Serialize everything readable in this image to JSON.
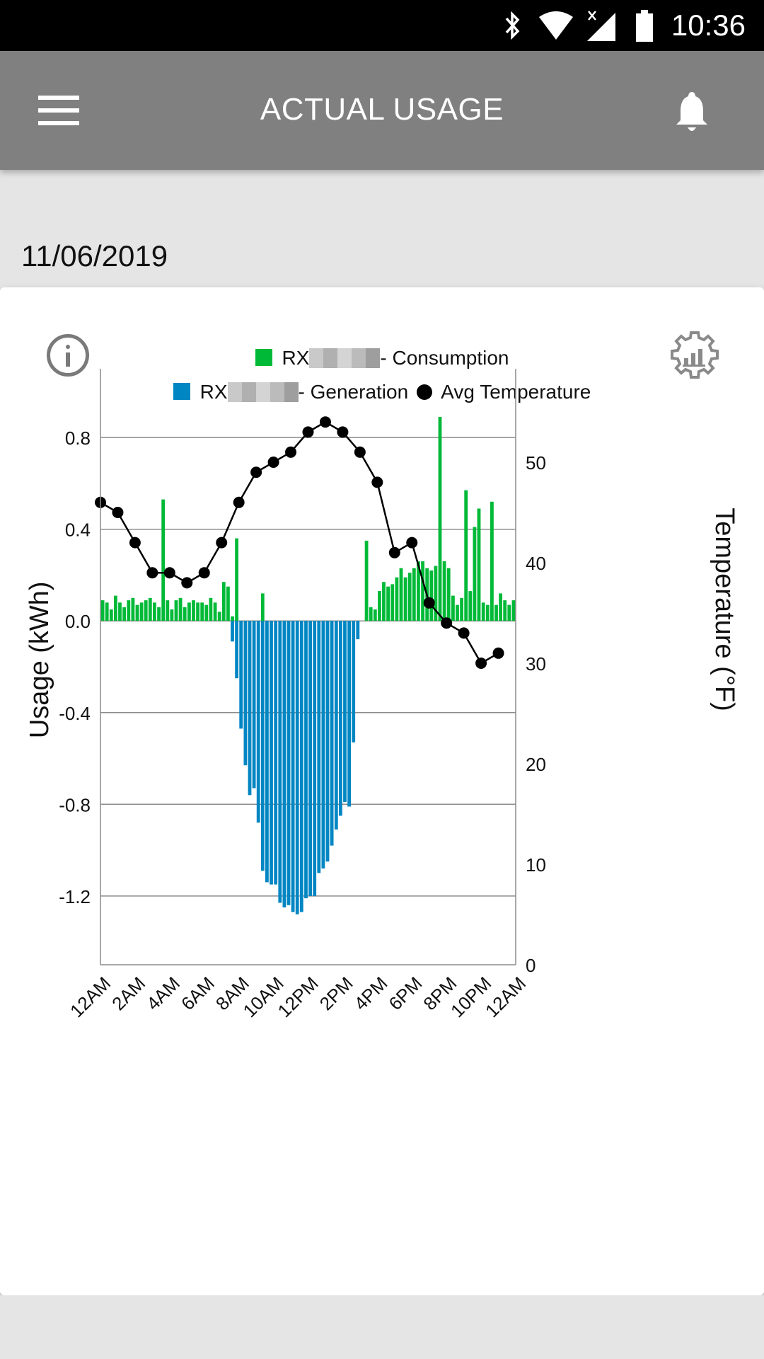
{
  "status_bar": {
    "time": "10:36",
    "icons": [
      "bluetooth-icon",
      "wifi-icon",
      "no-signal-icon",
      "battery-icon"
    ]
  },
  "app_bar": {
    "title": "ACTUAL USAGE",
    "menu_icon": "hamburger-menu-icon",
    "notification_icon": "bell-icon"
  },
  "date": "11/06/2019",
  "card": {
    "info_icon": "info-icon",
    "settings_icon": "chart-settings-gear-icon"
  },
  "legend": {
    "consumption": {
      "prefix": "RX",
      "suffix": "- Consumption",
      "color": "#00b937"
    },
    "generation": {
      "prefix": "RX",
      "suffix": "- Generation",
      "color": "#0086c3"
    },
    "temperature": {
      "label": "Avg Temperature",
      "color": "#000000"
    }
  },
  "chart_data": {
    "type": "bar",
    "title": "",
    "xlabel": "",
    "ylabel": "Usage (kWh)",
    "y2label": "Temperature (°F)",
    "ylim": [
      -1.5,
      1.1
    ],
    "y2lim": [
      0,
      60
    ],
    "grid": true,
    "legend_position": "top-center",
    "x_tick_labels": [
      "12AM",
      "2AM",
      "4AM",
      "6AM",
      "8AM",
      "10AM",
      "12PM",
      "2PM",
      "4PM",
      "6PM",
      "8PM",
      "10PM",
      "12AM"
    ],
    "y_tick_labels": [
      "0.8",
      "0.4",
      "0.0",
      "-0.4",
      "-0.8",
      "-1.2"
    ],
    "y_ticks": [
      0.8,
      0.4,
      0.0,
      -0.4,
      -0.8,
      -1.2
    ],
    "y2_tick_labels": [
      "0",
      "10",
      "20",
      "30",
      "40",
      "50"
    ],
    "y2_ticks": [
      0,
      10,
      20,
      30,
      40,
      50
    ],
    "interval_minutes": 15,
    "series": [
      {
        "name": "Consumption",
        "type": "bar",
        "color": "#00b937",
        "values": [
          0.09,
          0.08,
          0.05,
          0.11,
          0.08,
          0.06,
          0.09,
          0.1,
          0.07,
          0.08,
          0.09,
          0.1,
          0.08,
          0.06,
          0.53,
          0.09,
          0.05,
          0.09,
          0.1,
          0.06,
          0.08,
          0.09,
          0.08,
          0.08,
          0.07,
          0.1,
          0.08,
          0.04,
          0.17,
          0.15,
          0.02,
          0.36,
          0,
          0,
          0,
          0,
          0,
          0.12,
          0,
          0,
          0,
          0,
          0,
          0,
          0,
          0,
          0,
          0,
          0,
          0,
          0,
          0,
          0,
          0,
          0,
          0,
          0,
          0,
          0,
          0,
          0,
          0.35,
          0.06,
          0.05,
          0.13,
          0.17,
          0.15,
          0.16,
          0.19,
          0.23,
          0.19,
          0.21,
          0.23,
          0.26,
          0.26,
          0.23,
          0.22,
          0.24,
          0.89,
          0.26,
          0.23,
          0.11,
          0.07,
          0.1,
          0.57,
          0.13,
          0.41,
          0.49,
          0.08,
          0.07,
          0.52,
          0.07,
          0.12,
          0.09,
          0.07,
          0.09
        ]
      },
      {
        "name": "Generation",
        "type": "bar",
        "color": "#0086c3",
        "values": [
          0,
          0,
          0,
          0,
          0,
          0,
          0,
          0,
          0,
          0,
          0,
          0,
          0,
          0,
          0,
          0,
          0,
          0,
          0,
          0,
          0,
          0,
          0,
          0,
          0,
          0,
          0,
          0,
          0,
          0,
          -0.09,
          -0.25,
          -0.47,
          -0.63,
          -0.76,
          -0.73,
          -0.88,
          -1.09,
          -1.14,
          -1.15,
          -1.15,
          -1.23,
          -1.25,
          -1.24,
          -1.27,
          -1.28,
          -1.27,
          -1.21,
          -1.2,
          -1.2,
          -1.1,
          -1.08,
          -1.05,
          -0.98,
          -0.91,
          -0.85,
          -0.79,
          -0.81,
          -0.53,
          -0.08,
          0,
          0,
          0,
          0,
          0,
          0,
          0,
          0,
          0,
          0,
          0,
          0,
          0,
          0,
          0,
          0,
          0,
          0,
          0,
          0,
          0,
          0,
          0,
          0,
          0,
          0,
          0,
          0,
          0,
          0,
          0,
          0,
          0,
          0,
          0,
          0
        ]
      },
      {
        "name": "Avg Temperature",
        "type": "line",
        "axis": "y2",
        "color": "#000000",
        "x_hours": [
          0,
          1,
          2,
          3,
          4,
          5,
          6,
          7,
          8,
          9,
          10,
          11,
          12,
          13,
          14,
          15,
          16,
          17,
          18,
          19,
          20,
          21,
          22,
          23
        ],
        "values": [
          46,
          45,
          42,
          39,
          39,
          38,
          39,
          42,
          46,
          49,
          50,
          51,
          53,
          54,
          53,
          51,
          48,
          41,
          42,
          36,
          34,
          33,
          30,
          31
        ]
      }
    ]
  }
}
